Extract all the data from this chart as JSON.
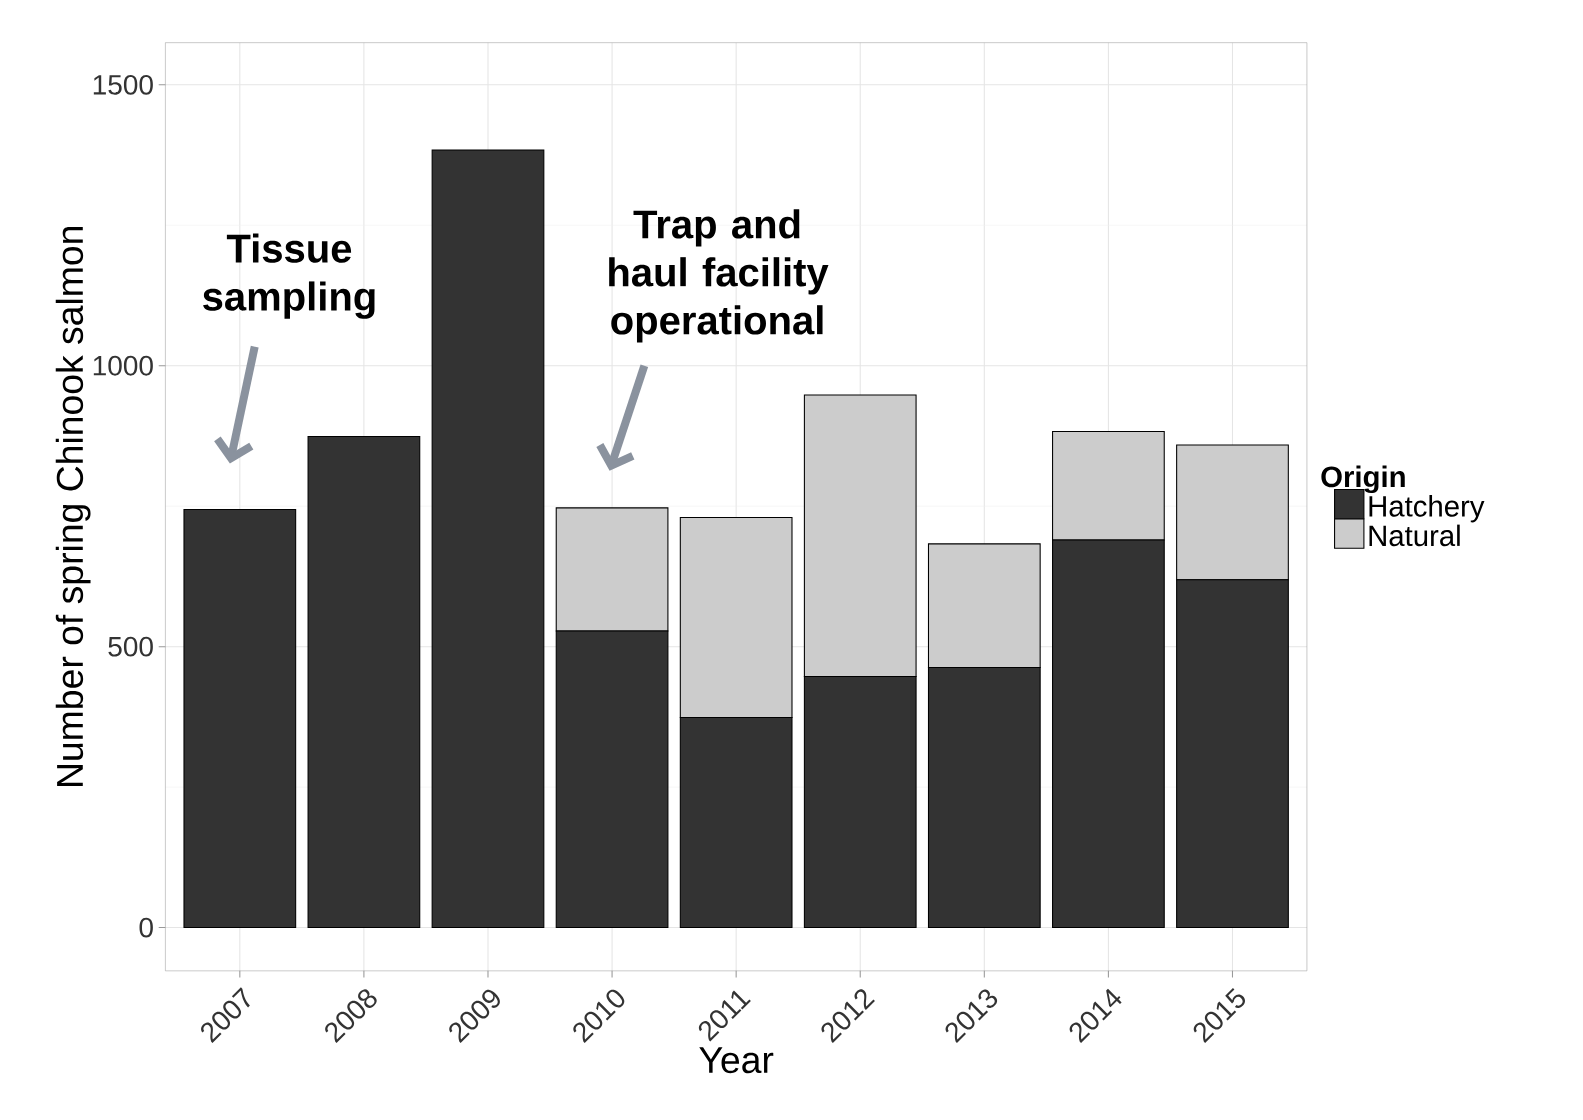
{
  "chart_data": {
    "type": "bar",
    "stacked": true,
    "xlabel": "Year",
    "ylabel": "Number of spring Chinook salmon",
    "legend_title": "Origin",
    "categories": [
      "2007",
      "2008",
      "2009",
      "2010",
      "2011",
      "2012",
      "2013",
      "2014",
      "2015"
    ],
    "series": [
      {
        "name": "Hatchery",
        "color": "#333333",
        "values": [
          744,
          874,
          1384,
          528,
          374,
          447,
          463,
          690,
          619
        ]
      },
      {
        "name": "Natural",
        "color": "#cccccc",
        "values": [
          0,
          0,
          0,
          219,
          356,
          501,
          220,
          193,
          240
        ]
      }
    ],
    "ylim": [
      -77,
      1575
    ],
    "yticks": [
      0,
      500,
      1000,
      1500
    ],
    "grid": true,
    "legend": "right",
    "annotations": [
      "Tissue sampling",
      "Trap and haul facility operational"
    ]
  }
}
